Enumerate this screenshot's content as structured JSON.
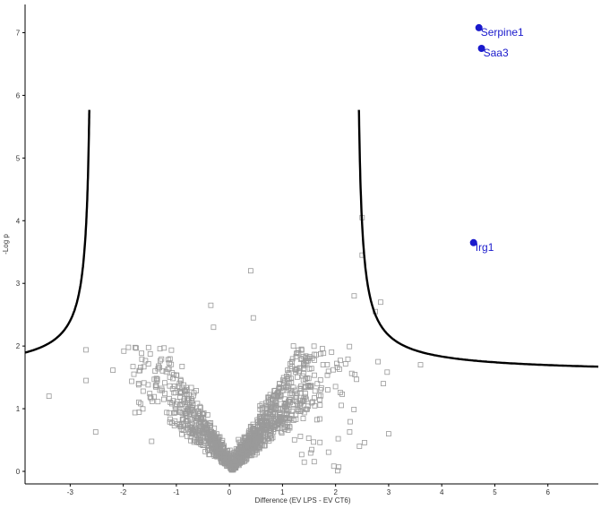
{
  "chart_data": {
    "type": "scatter",
    "title": "",
    "xlabel": "Difference (EV LPS - EV CT6)",
    "ylabel": "-Log p",
    "xlim": [
      -3.85,
      6.95
    ],
    "ylim": [
      -0.2,
      7.45
    ],
    "x_ticks": [
      "-3",
      "-2",
      "-1",
      "0",
      "1",
      "2",
      "3",
      "4",
      "5",
      "6"
    ],
    "y_ticks": [
      "0",
      "1",
      "2",
      "3",
      "4",
      "5",
      "6",
      "7"
    ],
    "grid": false,
    "colors": {
      "background_points": "#9a9a9a",
      "significant_points": "#1a1acc",
      "threshold_curve": "#000000",
      "axis": "#000000"
    },
    "threshold": {
      "shape": "hyperbolic",
      "x0": 0.5,
      "s0": 0.7,
      "c": 0.6,
      "asymptote_x": [
        -2.6,
        2.4
      ]
    },
    "highlighted_points": [
      {
        "label": "Serpine1",
        "x": 4.7,
        "y": 7.08
      },
      {
        "label": "Saa3",
        "x": 4.75,
        "y": 6.75
      },
      {
        "label": "Irg1",
        "x": 4.6,
        "y": 3.65
      }
    ],
    "notable_background_points": [
      {
        "x": 2.5,
        "y": 4.05
      },
      {
        "x": 2.5,
        "y": 3.45
      },
      {
        "x": 0.4,
        "y": 3.2
      },
      {
        "x": -0.35,
        "y": 2.65
      },
      {
        "x": 2.35,
        "y": 2.8
      },
      {
        "x": 2.85,
        "y": 2.7
      },
      {
        "x": 2.75,
        "y": 2.55
      },
      {
        "x": 0.45,
        "y": 2.45
      },
      {
        "x": -0.3,
        "y": 2.3
      },
      {
        "x": 3.6,
        "y": 1.7
      },
      {
        "x": -3.4,
        "y": 1.2
      },
      {
        "x": -2.7,
        "y": 1.45
      },
      {
        "x": 2.8,
        "y": 1.75
      },
      {
        "x": 2.9,
        "y": 1.4
      },
      {
        "x": 3.0,
        "y": 0.6
      },
      {
        "x": 2.45,
        "y": 0.4
      },
      {
        "x": -1.4,
        "y": 1.6
      },
      {
        "x": -1.8,
        "y": 1.55
      }
    ],
    "background_cloud": {
      "count": 1400,
      "x_center": 0.3,
      "x_spread": 0.75,
      "min_y": 0.0,
      "max_y": 2.0
    }
  }
}
